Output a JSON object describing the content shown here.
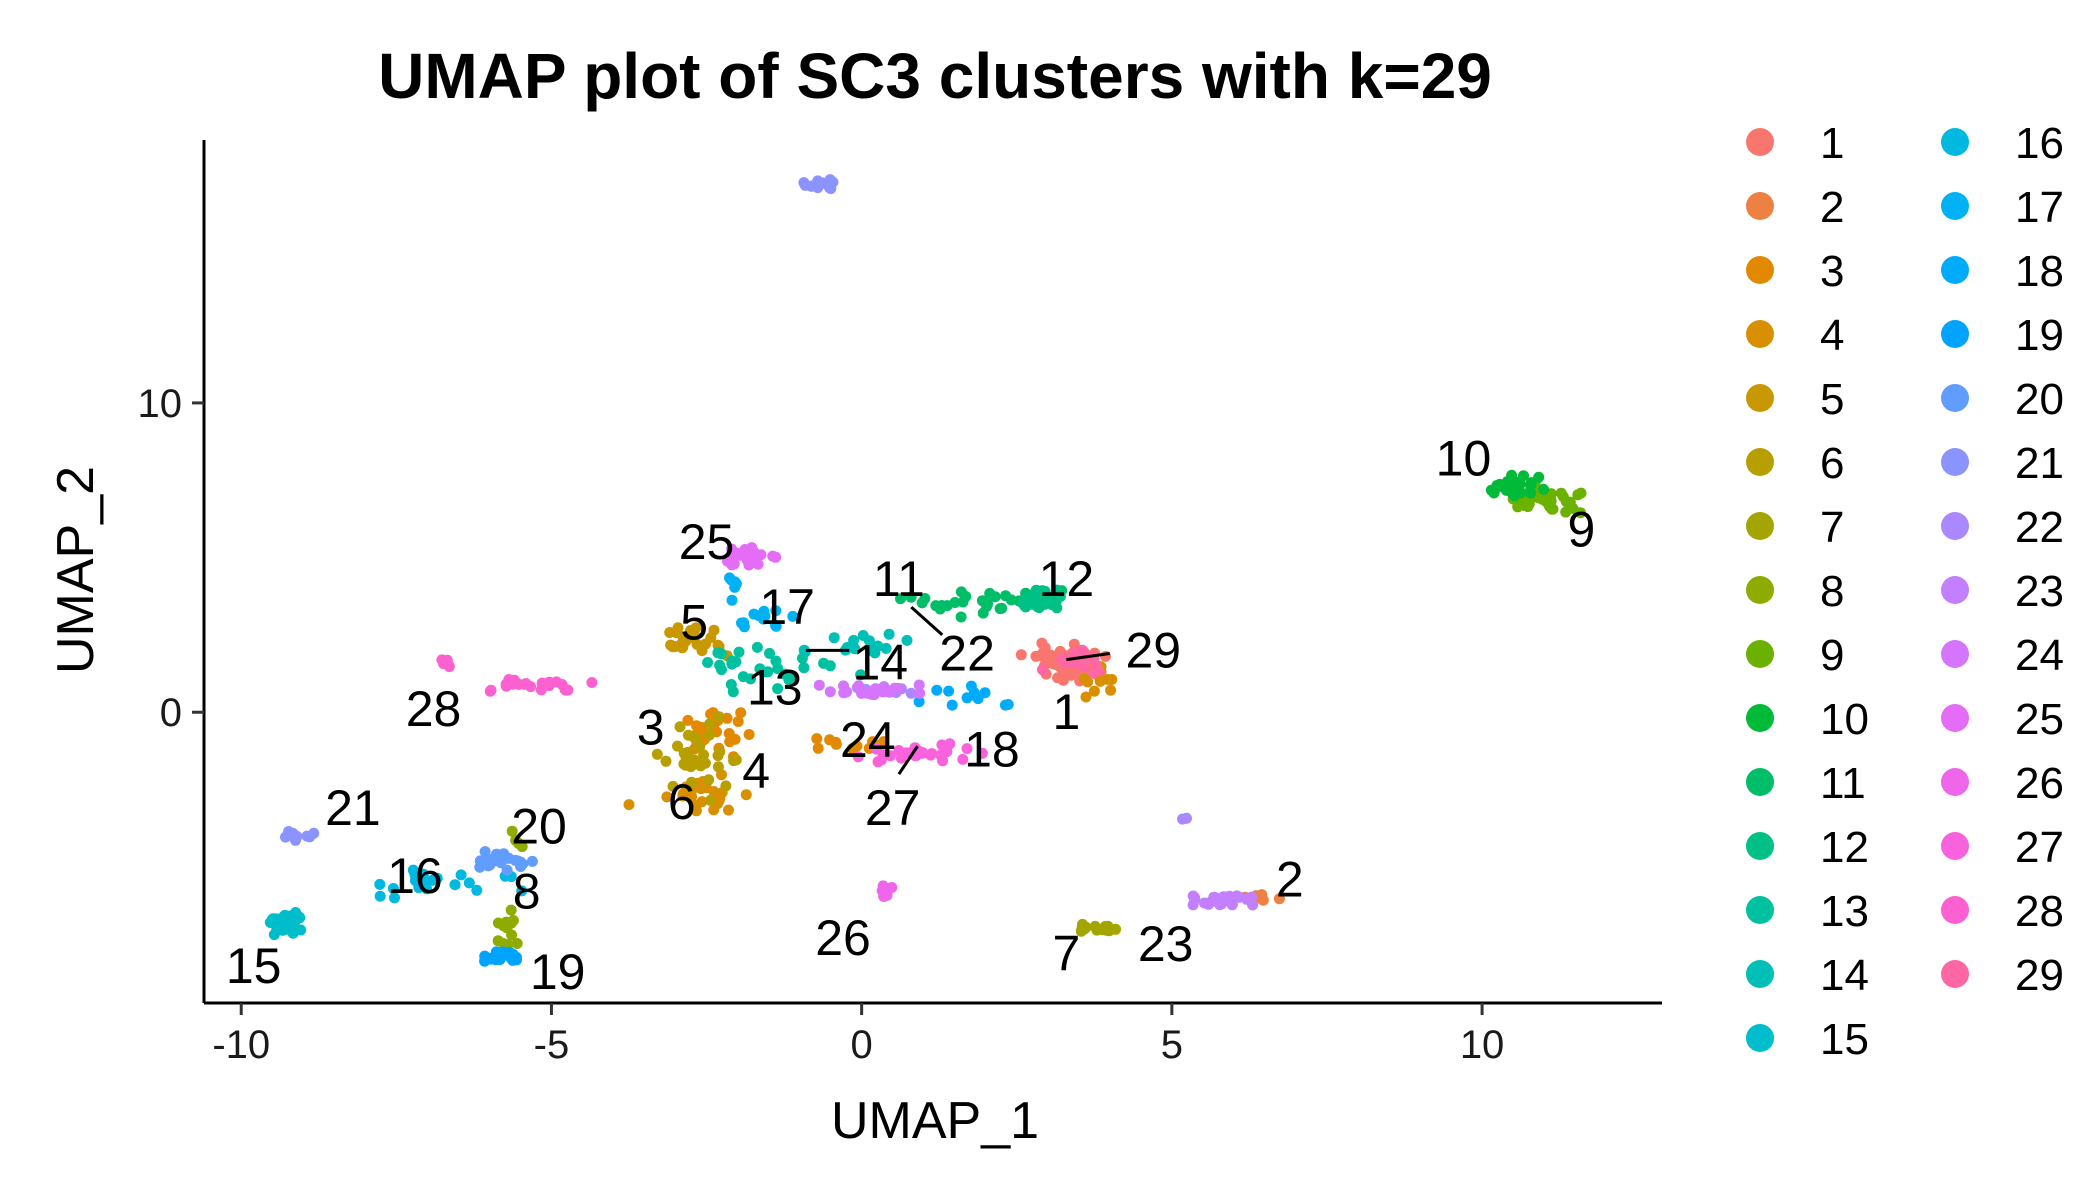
{
  "chart_data": {
    "type": "scatter",
    "title": "UMAP plot of SC3 clusters with k=29",
    "xlabel": "UMAP_1",
    "ylabel": "UMAP_2",
    "xlim": [
      -10.6,
      12.9
    ],
    "ylim": [
      -9.4,
      18.5
    ],
    "xticks": [
      -10,
      -5,
      0,
      5,
      10
    ],
    "yticks": [
      0,
      10
    ],
    "grid": false,
    "legend_position": "right",
    "clusters": [
      {
        "name": "1",
        "color": "#F8766D",
        "label_at": [
          3.3,
          0
        ],
        "regions": [
          [
            3.3,
            1.6,
            0.5,
            0.5,
            60
          ]
        ]
      },
      {
        "name": "2",
        "color": "#EE8044",
        "label_at": [
          6.9,
          -5.4
        ],
        "regions": [
          [
            6.5,
            -6.0,
            0.3,
            0.1,
            8
          ]
        ]
      },
      {
        "name": "3",
        "color": "#E38900",
        "label_at": [
          -3.4,
          -0.5
        ],
        "regions": [
          [
            -2.5,
            -0.6,
            0.6,
            0.6,
            25
          ],
          [
            0.0,
            -1.0,
            0.6,
            0.3,
            10
          ]
        ]
      },
      {
        "name": "4",
        "color": "#D89000",
        "label_at": [
          -1.7,
          -1.9
        ],
        "regions": [
          [
            -2.6,
            -2.7,
            0.8,
            0.5,
            25
          ],
          [
            3.8,
            1.0,
            0.3,
            0.4,
            10
          ]
        ]
      },
      {
        "name": "5",
        "color": "#C99800",
        "label_at": [
          -2.7,
          2.9
        ],
        "regions": [
          [
            -2.6,
            2.3,
            0.5,
            0.4,
            25
          ]
        ]
      },
      {
        "name": "6",
        "color": "#B79F00",
        "label_at": [
          -2.9,
          -2.9
        ],
        "regions": [
          [
            -2.6,
            -1.5,
            0.5,
            1.0,
            35
          ]
        ]
      },
      {
        "name": "7",
        "color": "#A3A500",
        "label_at": [
          3.3,
          -7.8
        ],
        "regions": [
          [
            3.8,
            -7.0,
            0.3,
            0.1,
            15
          ]
        ]
      },
      {
        "name": "8",
        "color": "#8EAB00",
        "label_at": [
          -5.4,
          -5.8
        ],
        "regions": [
          [
            -5.7,
            -7.0,
            0.2,
            0.6,
            12
          ],
          [
            -5.6,
            -4.2,
            0.2,
            0.3,
            4
          ]
        ]
      },
      {
        "name": "9",
        "color": "#6BB100",
        "label_at": [
          11.6,
          5.9
        ],
        "regions": [
          [
            11.0,
            6.9,
            0.5,
            0.4,
            40
          ]
        ]
      },
      {
        "name": "10",
        "color": "#00BA38",
        "label_at": [
          9.7,
          8.2
        ],
        "regions": [
          [
            10.5,
            7.3,
            0.5,
            0.3,
            25
          ]
        ]
      },
      {
        "name": "11",
        "color": "#00BE67",
        "label_at": [
          0.6,
          4.3
        ],
        "regions": [
          [
            2.0,
            3.5,
            0.9,
            0.5,
            20
          ],
          [
            1.0,
            3.5,
            0.5,
            0.2,
            8
          ]
        ]
      },
      {
        "name": "12",
        "color": "#00C085",
        "label_at": [
          3.3,
          4.3
        ],
        "regions": [
          [
            2.8,
            3.6,
            0.4,
            0.4,
            30
          ]
        ]
      },
      {
        "name": "13",
        "color": "#00C19F",
        "label_at": [
          -1.4,
          0.8
        ],
        "regions": [
          [
            -1.4,
            1.4,
            1.0,
            0.7,
            30
          ]
        ]
      },
      {
        "name": "14",
        "color": "#00BFB6",
        "label_at": [
          0.3,
          1.6
        ],
        "regions": [
          [
            0.1,
            2.2,
            0.8,
            0.3,
            15
          ]
        ]
      },
      {
        "name": "15",
        "color": "#00BDCC",
        "label_at": [
          -9.8,
          -8.2
        ],
        "regions": [
          [
            -9.3,
            -6.8,
            0.3,
            0.3,
            35
          ]
        ]
      },
      {
        "name": "16",
        "color": "#00B8E0",
        "label_at": [
          -7.2,
          -5.3
        ],
        "regions": [
          [
            -7.0,
            -5.5,
            1.2,
            0.5,
            20
          ]
        ]
      },
      {
        "name": "17",
        "color": "#00B2F3",
        "label_at": [
          -1.2,
          3.4
        ],
        "regions": [
          [
            -1.6,
            3.0,
            0.4,
            0.4,
            12
          ],
          [
            -2.0,
            4.0,
            0.2,
            0.4,
            6
          ]
        ]
      },
      {
        "name": "18",
        "color": "#00ABFD",
        "label_at": [
          2.1,
          -1.2
        ],
        "regions": [
          [
            1.8,
            0.6,
            0.8,
            0.4,
            12
          ]
        ]
      },
      {
        "name": "19",
        "color": "#00A4FF",
        "label_at": [
          -4.9,
          -8.4
        ],
        "regions": [
          [
            -5.8,
            -7.9,
            0.2,
            0.2,
            20
          ]
        ]
      },
      {
        "name": "20",
        "color": "#619CFF",
        "label_at": [
          -5.2,
          -3.7
        ],
        "regions": [
          [
            -5.8,
            -4.8,
            0.4,
            0.3,
            25
          ]
        ]
      },
      {
        "name": "21",
        "color": "#8B93FF",
        "label_at": [
          -8.2,
          -3.1
        ],
        "regions": [
          [
            -9.0,
            -4.0,
            0.3,
            0.2,
            10
          ],
          [
            -0.6,
            17.1,
            0.3,
            0.2,
            15
          ]
        ]
      },
      {
        "name": "22",
        "color": "#AA88FF",
        "label_at": [
          1.7,
          1.9
        ],
        "regions": [
          [
            0.4,
            0.7,
            0.5,
            0.2,
            10
          ],
          [
            5.2,
            -3.5,
            0.1,
            0.1,
            2
          ]
        ]
      },
      {
        "name": "23",
        "color": "#C27FFF",
        "label_at": [
          4.9,
          -7.5
        ],
        "regions": [
          [
            5.8,
            -6.1,
            0.6,
            0.2,
            25
          ]
        ]
      },
      {
        "name": "24",
        "color": "#D575FE",
        "label_at": [
          0.1,
          -0.9
        ],
        "regions": [
          [
            0.2,
            0.7,
            0.8,
            0.2,
            20
          ]
        ]
      },
      {
        "name": "25",
        "color": "#E46CF6",
        "label_at": [
          -2.5,
          5.5
        ],
        "regions": [
          [
            -1.8,
            5.0,
            0.4,
            0.3,
            25
          ]
        ]
      },
      {
        "name": "26",
        "color": "#F066EA",
        "label_at": [
          -0.3,
          -7.3
        ],
        "regions": [
          [
            0.4,
            -5.8,
            0.1,
            0.2,
            10
          ]
        ]
      },
      {
        "name": "27",
        "color": "#F962DD",
        "label_at": [
          0.5,
          -3.1
        ],
        "regions": [
          [
            0.8,
            -1.3,
            0.8,
            0.3,
            30
          ]
        ]
      },
      {
        "name": "28",
        "color": "#FD61D1",
        "label_at": [
          -6.9,
          0.1
        ],
        "regions": [
          [
            -6.7,
            1.6,
            0.2,
            0.2,
            6
          ],
          [
            -5.2,
            0.9,
            0.8,
            0.2,
            25
          ]
        ]
      },
      {
        "name": "29",
        "color": "#FF67A4",
        "label_at": [
          4.7,
          2.0
        ],
        "regions": [
          [
            3.4,
            1.7,
            0.5,
            0.3,
            20
          ]
        ]
      }
    ],
    "leader_lines": [
      {
        "cluster": "11",
        "from": [
          0.8,
          3.4
        ],
        "to": [
          1.3,
          2.5
        ]
      },
      {
        "cluster": "14",
        "from": [
          -0.2,
          2.0
        ],
        "to": [
          -0.9,
          2.0
        ]
      },
      {
        "cluster": "27",
        "from": [
          0.6,
          -2.0
        ],
        "to": [
          0.9,
          -1.1
        ]
      },
      {
        "cluster": "29",
        "from": [
          4.0,
          1.9
        ],
        "to": [
          3.3,
          1.7
        ]
      }
    ]
  }
}
